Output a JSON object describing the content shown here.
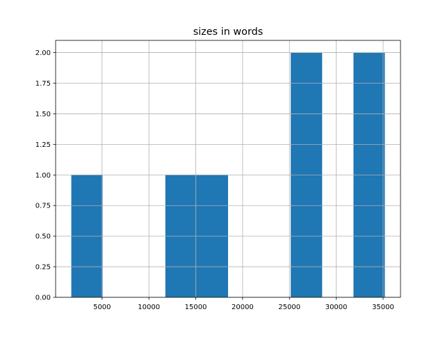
{
  "chart_data": {
    "type": "bar",
    "title": "sizes in words",
    "xlabel": "",
    "ylabel": "",
    "bin_edges": [
      1714,
      5061,
      8408,
      11755,
      15102,
      18449,
      21796,
      25143,
      28490,
      31837,
      35184
    ],
    "values": [
      1,
      0,
      0,
      1,
      1,
      0,
      0,
      2,
      0,
      2
    ],
    "xlim": [
      41,
      36857
    ],
    "ylim": [
      0,
      2.1
    ],
    "xticks": [
      5000,
      10000,
      15000,
      20000,
      25000,
      30000,
      35000
    ],
    "xtick_labels": [
      "5000",
      "10000",
      "15000",
      "20000",
      "25000",
      "30000",
      "35000"
    ],
    "yticks": [
      0,
      0.25,
      0.5,
      0.75,
      1.0,
      1.25,
      1.5,
      1.75,
      2.0
    ],
    "ytick_labels": [
      "0.00",
      "0.25",
      "0.50",
      "0.75",
      "1.00",
      "1.25",
      "1.50",
      "1.75",
      "2.00"
    ],
    "grid": true,
    "bar_color": "#1f77b4",
    "grid_color": "#b0b0b0"
  }
}
